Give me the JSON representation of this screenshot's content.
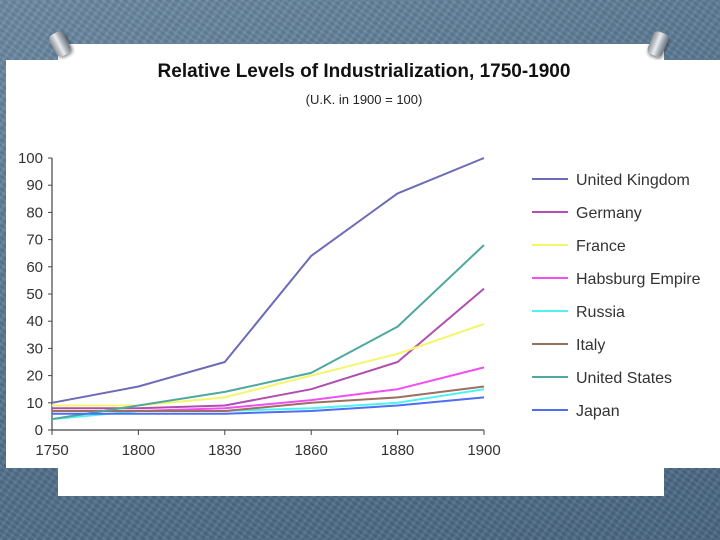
{
  "chart_data": {
    "type": "line",
    "title": "Relative Levels of Industrialization, 1750-1900",
    "subtitle": "(U.K. in 1900 = 100)",
    "xlabel": "",
    "ylabel": "",
    "categories": [
      "1750",
      "1800",
      "1830",
      "1860",
      "1880",
      "1900"
    ],
    "ylim": [
      0,
      100
    ],
    "y_ticks": [
      "0",
      "10",
      "20",
      "30",
      "40",
      "50",
      "60",
      "70",
      "80",
      "90",
      "100"
    ],
    "legend_position": "right",
    "series": [
      {
        "name": "United Kingdom",
        "color": "#6b6bb8",
        "values": [
          10,
          16,
          25,
          64,
          87,
          100
        ]
      },
      {
        "name": "Germany",
        "color": "#b04fb0",
        "values": [
          8,
          8,
          9,
          15,
          25,
          52
        ]
      },
      {
        "name": "France",
        "color": "#f5f56a",
        "values": [
          9,
          9,
          12,
          20,
          28,
          39
        ]
      },
      {
        "name": "Habsburg Empire",
        "color": "#f24ff2",
        "values": [
          7,
          7,
          8,
          11,
          15,
          23
        ]
      },
      {
        "name": "Russia",
        "color": "#4ff2f2",
        "values": [
          4,
          7,
          7,
          8,
          10,
          15
        ]
      },
      {
        "name": "Italy",
        "color": "#9a7060",
        "values": [
          7,
          7,
          7,
          10,
          12,
          16
        ]
      },
      {
        "name": "United States",
        "color": "#4fa8a0",
        "values": [
          4,
          9,
          14,
          21,
          38,
          68
        ]
      },
      {
        "name": "Japan",
        "color": "#4f6ef2",
        "values": [
          6,
          6,
          6,
          7,
          9,
          12
        ]
      }
    ]
  },
  "colors": {
    "axis": "#444444",
    "background": "#5a7a95"
  }
}
